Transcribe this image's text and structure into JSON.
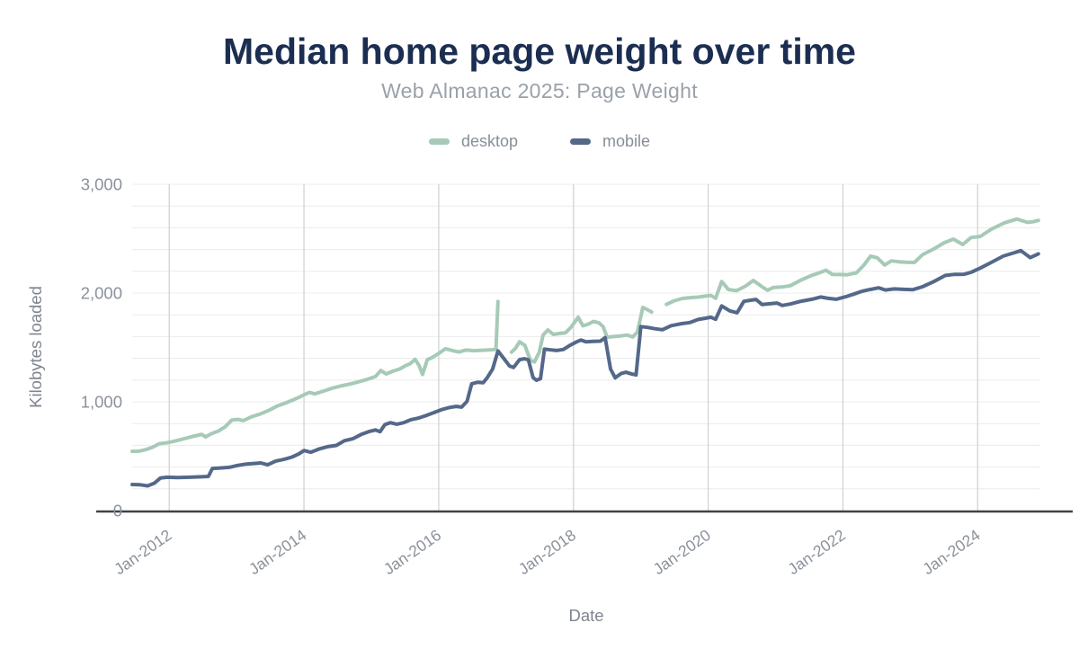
{
  "colors": {
    "background": "#ffffff",
    "title": "#1b2e52",
    "subtitle": "#9aa1a9",
    "legend_label": "#878e99",
    "tick_label": "#8b919b",
    "axis_title": "#7f858e",
    "grid_vertical": "#d2d3d4",
    "grid_horizontal": "#ececec",
    "axis_line": "#3f4347",
    "desktop": "#a6cab7",
    "mobile": "#546889"
  },
  "chart_data": {
    "type": "line",
    "title": "Median home page weight over time",
    "subtitle": "Web Almanac 2025: Page Weight",
    "xlabel": "Date",
    "ylabel": "Kilobytes loaded",
    "xlim": [
      2011.45,
      2024.93
    ],
    "ylim": [
      0,
      3000
    ],
    "y_major_step": 1000,
    "y_minor_step": 200,
    "grid": "light horizontal lines every 200 KB; vertical lines every 2 years",
    "legend_position": "top-center",
    "x_ticks": [
      {
        "t": 2012,
        "label": "Jan-2012"
      },
      {
        "t": 2014,
        "label": "Jan-2014"
      },
      {
        "t": 2016,
        "label": "Jan-2016"
      },
      {
        "t": 2018,
        "label": "Jan-2018"
      },
      {
        "t": 2020,
        "label": "Jan-2020"
      },
      {
        "t": 2022,
        "label": "Jan-2022"
      },
      {
        "t": 2024,
        "label": "Jan-2024"
      }
    ],
    "y_ticks": [
      {
        "v": 0,
        "label": "0"
      },
      {
        "v": 1000,
        "label": "1,000"
      },
      {
        "v": 2000,
        "label": "2,000"
      },
      {
        "v": 3000,
        "label": "3,000"
      }
    ],
    "series": [
      {
        "name": "desktop",
        "color": "#a6cab7",
        "unit": "KB",
        "points": [
          [
            2011.45,
            545
          ],
          [
            2011.55,
            546
          ],
          [
            2011.65,
            560
          ],
          [
            2011.75,
            582
          ],
          [
            2011.85,
            615
          ],
          [
            2011.95,
            622
          ],
          [
            2012.05,
            634
          ],
          [
            2012.2,
            658
          ],
          [
            2012.35,
            682
          ],
          [
            2012.48,
            701
          ],
          [
            2012.54,
            678
          ],
          [
            2012.62,
            706
          ],
          [
            2012.73,
            731
          ],
          [
            2012.83,
            770
          ],
          [
            2012.93,
            833
          ],
          [
            2013.02,
            838
          ],
          [
            2013.1,
            827
          ],
          [
            2013.22,
            862
          ],
          [
            2013.34,
            886
          ],
          [
            2013.46,
            916
          ],
          [
            2013.6,
            960
          ],
          [
            2013.72,
            988
          ],
          [
            2013.83,
            1016
          ],
          [
            2013.92,
            1040
          ],
          [
            2014.0,
            1065
          ],
          [
            2014.08,
            1086
          ],
          [
            2014.16,
            1073
          ],
          [
            2014.3,
            1100
          ],
          [
            2014.42,
            1126
          ],
          [
            2014.55,
            1146
          ],
          [
            2014.67,
            1162
          ],
          [
            2014.8,
            1182
          ],
          [
            2014.94,
            1207
          ],
          [
            2015.06,
            1232
          ],
          [
            2015.14,
            1288
          ],
          [
            2015.22,
            1256
          ],
          [
            2015.32,
            1282
          ],
          [
            2015.42,
            1302
          ],
          [
            2015.5,
            1330
          ],
          [
            2015.58,
            1352
          ],
          [
            2015.65,
            1390
          ],
          [
            2015.71,
            1332
          ],
          [
            2015.76,
            1252
          ],
          [
            2015.83,
            1387
          ],
          [
            2015.9,
            1407
          ],
          [
            2016.0,
            1445
          ],
          [
            2016.1,
            1488
          ],
          [
            2016.2,
            1472
          ],
          [
            2016.3,
            1458
          ],
          [
            2016.4,
            1476
          ],
          [
            2016.52,
            1470
          ],
          [
            2016.62,
            1473
          ],
          [
            2016.72,
            1476
          ],
          [
            2016.8,
            1479
          ],
          [
            2016.85,
            1484
          ],
          [
            2016.88,
            1922
          ],
          null,
          [
            2017.08,
            1456
          ],
          [
            2017.14,
            1492
          ],
          [
            2017.2,
            1552
          ],
          [
            2017.28,
            1518
          ],
          [
            2017.36,
            1382
          ],
          [
            2017.42,
            1366
          ],
          [
            2017.49,
            1452
          ],
          [
            2017.55,
            1614
          ],
          [
            2017.62,
            1660
          ],
          [
            2017.7,
            1620
          ],
          [
            2017.79,
            1628
          ],
          [
            2017.88,
            1634
          ],
          [
            2017.97,
            1690
          ],
          [
            2018.07,
            1778
          ],
          [
            2018.14,
            1698
          ],
          [
            2018.22,
            1714
          ],
          [
            2018.3,
            1740
          ],
          [
            2018.38,
            1726
          ],
          [
            2018.44,
            1692
          ],
          [
            2018.5,
            1594
          ],
          [
            2018.6,
            1600
          ],
          [
            2018.7,
            1606
          ],
          [
            2018.8,
            1614
          ],
          [
            2018.88,
            1596
          ],
          [
            2018.95,
            1642
          ],
          [
            2019.03,
            1868
          ],
          [
            2019.1,
            1846
          ],
          [
            2019.16,
            1826
          ],
          null,
          [
            2019.38,
            1896
          ],
          [
            2019.5,
            1930
          ],
          [
            2019.62,
            1950
          ],
          [
            2019.73,
            1958
          ],
          [
            2019.85,
            1963
          ],
          [
            2019.96,
            1972
          ],
          [
            2020.04,
            1978
          ],
          [
            2020.11,
            1952
          ],
          [
            2020.2,
            2106
          ],
          [
            2020.3,
            2032
          ],
          [
            2020.42,
            2022
          ],
          [
            2020.55,
            2062
          ],
          [
            2020.67,
            2116
          ],
          [
            2020.79,
            2062
          ],
          [
            2020.88,
            2026
          ],
          [
            2020.97,
            2052
          ],
          [
            2021.1,
            2056
          ],
          [
            2021.22,
            2068
          ],
          [
            2021.38,
            2120
          ],
          [
            2021.54,
            2164
          ],
          [
            2021.65,
            2186
          ],
          [
            2021.75,
            2210
          ],
          [
            2021.84,
            2172
          ],
          [
            2021.96,
            2170
          ],
          [
            2022.06,
            2168
          ],
          [
            2022.2,
            2186
          ],
          [
            2022.31,
            2256
          ],
          [
            2022.41,
            2340
          ],
          [
            2022.51,
            2324
          ],
          [
            2022.62,
            2258
          ],
          [
            2022.72,
            2296
          ],
          [
            2022.83,
            2288
          ],
          [
            2022.95,
            2283
          ],
          [
            2023.06,
            2281
          ],
          [
            2023.18,
            2352
          ],
          [
            2023.35,
            2406
          ],
          [
            2023.5,
            2462
          ],
          [
            2023.64,
            2496
          ],
          [
            2023.78,
            2446
          ],
          [
            2023.9,
            2510
          ],
          [
            2024.04,
            2521
          ],
          [
            2024.2,
            2586
          ],
          [
            2024.4,
            2646
          ],
          [
            2024.58,
            2680
          ],
          [
            2024.74,
            2650
          ],
          [
            2024.82,
            2655
          ],
          [
            2024.9,
            2668
          ]
        ]
      },
      {
        "name": "mobile",
        "color": "#546889",
        "unit": "KB",
        "points": [
          [
            2011.45,
            240
          ],
          [
            2011.56,
            238
          ],
          [
            2011.68,
            227
          ],
          [
            2011.78,
            252
          ],
          [
            2011.87,
            300
          ],
          [
            2011.97,
            307
          ],
          [
            2012.12,
            304
          ],
          [
            2012.3,
            307
          ],
          [
            2012.48,
            311
          ],
          [
            2012.58,
            314
          ],
          [
            2012.64,
            388
          ],
          [
            2012.76,
            392
          ],
          [
            2012.9,
            398
          ],
          [
            2013.02,
            416
          ],
          [
            2013.15,
            428
          ],
          [
            2013.26,
            433
          ],
          [
            2013.36,
            438
          ],
          [
            2013.46,
            421
          ],
          [
            2013.58,
            455
          ],
          [
            2013.7,
            470
          ],
          [
            2013.82,
            492
          ],
          [
            2013.92,
            520
          ],
          [
            2014.0,
            552
          ],
          [
            2014.1,
            536
          ],
          [
            2014.22,
            565
          ],
          [
            2014.35,
            588
          ],
          [
            2014.48,
            599
          ],
          [
            2014.6,
            642
          ],
          [
            2014.73,
            662
          ],
          [
            2014.85,
            700
          ],
          [
            2014.96,
            726
          ],
          [
            2015.06,
            741
          ],
          [
            2015.13,
            726
          ],
          [
            2015.2,
            790
          ],
          [
            2015.28,
            808
          ],
          [
            2015.38,
            794
          ],
          [
            2015.48,
            808
          ],
          [
            2015.58,
            834
          ],
          [
            2015.7,
            850
          ],
          [
            2015.83,
            878
          ],
          [
            2015.95,
            906
          ],
          [
            2016.06,
            931
          ],
          [
            2016.16,
            948
          ],
          [
            2016.26,
            958
          ],
          [
            2016.34,
            951
          ],
          [
            2016.42,
            1004
          ],
          [
            2016.49,
            1166
          ],
          [
            2016.58,
            1180
          ],
          [
            2016.66,
            1176
          ],
          [
            2016.72,
            1222
          ],
          [
            2016.8,
            1302
          ],
          [
            2016.88,
            1468
          ],
          [
            2016.96,
            1404
          ],
          [
            2017.05,
            1330
          ],
          [
            2017.11,
            1316
          ],
          [
            2017.2,
            1388
          ],
          [
            2017.27,
            1396
          ],
          [
            2017.33,
            1387
          ],
          [
            2017.4,
            1224
          ],
          [
            2017.45,
            1198
          ],
          [
            2017.51,
            1212
          ],
          [
            2017.57,
            1484
          ],
          [
            2017.66,
            1478
          ],
          [
            2017.75,
            1472
          ],
          [
            2017.85,
            1481
          ],
          [
            2017.95,
            1520
          ],
          [
            2018.05,
            1552
          ],
          [
            2018.11,
            1568
          ],
          [
            2018.19,
            1551
          ],
          [
            2018.29,
            1556
          ],
          [
            2018.4,
            1558
          ],
          [
            2018.47,
            1590
          ],
          [
            2018.55,
            1302
          ],
          [
            2018.62,
            1221
          ],
          [
            2018.71,
            1261
          ],
          [
            2018.78,
            1272
          ],
          [
            2018.86,
            1257
          ],
          [
            2018.93,
            1247
          ],
          [
            2019.0,
            1692
          ],
          [
            2019.1,
            1684
          ],
          [
            2019.21,
            1672
          ],
          [
            2019.32,
            1663
          ],
          [
            2019.45,
            1700
          ],
          [
            2019.6,
            1718
          ],
          [
            2019.73,
            1729
          ],
          [
            2019.85,
            1757
          ],
          [
            2019.96,
            1769
          ],
          [
            2020.04,
            1778
          ],
          [
            2020.11,
            1759
          ],
          [
            2020.2,
            1882
          ],
          [
            2020.32,
            1836
          ],
          [
            2020.43,
            1819
          ],
          [
            2020.53,
            1924
          ],
          [
            2020.63,
            1934
          ],
          [
            2020.71,
            1941
          ],
          [
            2020.8,
            1894
          ],
          [
            2020.92,
            1902
          ],
          [
            2021.02,
            1908
          ],
          [
            2021.1,
            1886
          ],
          [
            2021.22,
            1899
          ],
          [
            2021.38,
            1925
          ],
          [
            2021.54,
            1943
          ],
          [
            2021.67,
            1964
          ],
          [
            2021.78,
            1951
          ],
          [
            2021.9,
            1943
          ],
          [
            2022.04,
            1966
          ],
          [
            2022.16,
            1990
          ],
          [
            2022.28,
            2016
          ],
          [
            2022.4,
            2032
          ],
          [
            2022.53,
            2048
          ],
          [
            2022.63,
            2028
          ],
          [
            2022.76,
            2038
          ],
          [
            2022.9,
            2034
          ],
          [
            2023.04,
            2031
          ],
          [
            2023.18,
            2058
          ],
          [
            2023.35,
            2106
          ],
          [
            2023.52,
            2162
          ],
          [
            2023.66,
            2172
          ],
          [
            2023.8,
            2173
          ],
          [
            2023.9,
            2190
          ],
          [
            2024.04,
            2230
          ],
          [
            2024.2,
            2281
          ],
          [
            2024.38,
            2340
          ],
          [
            2024.55,
            2372
          ],
          [
            2024.64,
            2390
          ],
          [
            2024.78,
            2326
          ],
          [
            2024.9,
            2360
          ]
        ]
      }
    ]
  }
}
